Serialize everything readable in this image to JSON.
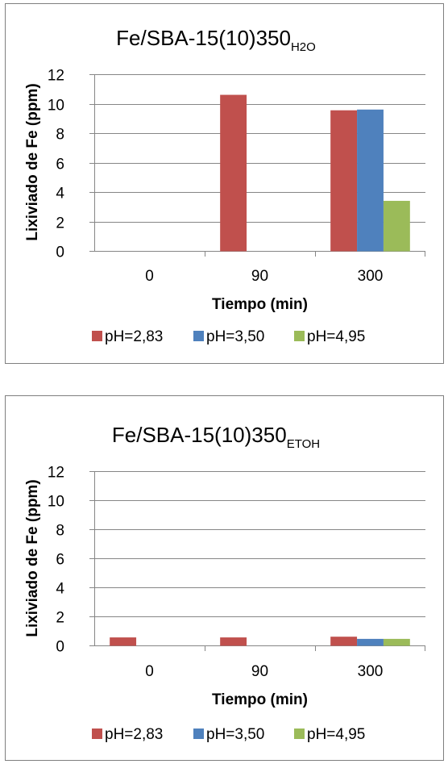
{
  "chart_data": [
    {
      "type": "bar",
      "title": "Fe/SBA-15(10)350",
      "title_subscript": "H2O",
      "xlabel": "Tiempo (min)",
      "ylabel": "Lixiviado de Fe (ppm)",
      "categories": [
        "0",
        "90",
        "300"
      ],
      "ylim": [
        0,
        12
      ],
      "yticks": [
        "0",
        "2",
        "4",
        "6",
        "8",
        "10",
        "12"
      ],
      "grid": true,
      "legend_position": "bottom",
      "series": [
        {
          "name": "pH=2,83",
          "color": "#c0504d",
          "values": [
            0,
            10.6,
            9.55
          ]
        },
        {
          "name": "pH=3,50",
          "color": "#4f81bd",
          "values": [
            0,
            0,
            9.6
          ]
        },
        {
          "name": "pH=4,95",
          "color": "#9bbb59",
          "values": [
            0,
            0,
            3.4
          ]
        }
      ]
    },
    {
      "type": "bar",
      "title": "Fe/SBA-15(10)350",
      "title_subscript": "ETOH",
      "xlabel": "Tiempo (min)",
      "ylabel": "Lixiviado de Fe (ppm)",
      "categories": [
        "0",
        "90",
        "300"
      ],
      "ylim": [
        0,
        12
      ],
      "yticks": [
        "0",
        "2",
        "4",
        "6",
        "8",
        "10",
        "12"
      ],
      "grid": true,
      "legend_position": "bottom",
      "series": [
        {
          "name": "pH=2,83",
          "color": "#c0504d",
          "values": [
            0.55,
            0.55,
            0.6
          ]
        },
        {
          "name": "pH=3,50",
          "color": "#4f81bd",
          "values": [
            0,
            0,
            0.45
          ]
        },
        {
          "name": "pH=4,95",
          "color": "#9bbb59",
          "values": [
            0,
            0,
            0.45
          ]
        }
      ]
    }
  ]
}
